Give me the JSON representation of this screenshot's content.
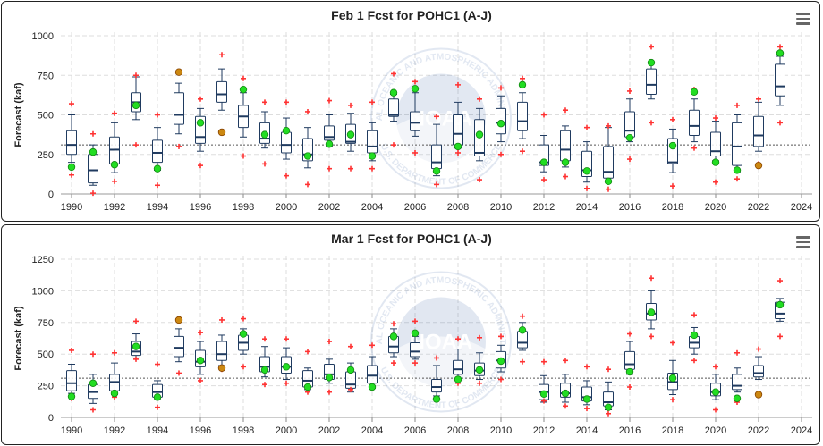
{
  "colors": {
    "box": "#1f3a5f",
    "observed": "#22dd22",
    "observed_stroke": "#118811",
    "observed_partial": "#cc8811",
    "extreme": "#ff3333",
    "normal_line": "#555555",
    "grid": "#dddddd",
    "watermark": "#1f4f9c"
  },
  "watermark": {
    "logo": "NOAA",
    "ring_top": "NATIONAL OCEANIC AND ATMOSPHERIC ADMINISTRATION",
    "ring_bottom": "U.S. DEPARTMENT OF COMMERCE"
  },
  "chart_data": [
    {
      "type": "box",
      "title": "Feb 1 Fcst for POHC1 (A-J)",
      "ylabel": "Forecast (kaf)",
      "ylim": [
        0,
        1000
      ],
      "yticks": [
        0,
        250,
        500,
        750,
        1000
      ],
      "xlim": [
        1989.5,
        2024.5
      ],
      "xticks": [
        1990,
        1992,
        1994,
        1996,
        1998,
        2000,
        2002,
        2004,
        2006,
        2008,
        2010,
        2012,
        2014,
        2016,
        2018,
        2020,
        2022,
        2024
      ],
      "grid": true,
      "normal_line": 310,
      "years": [
        1990,
        1991,
        1992,
        1993,
        1994,
        1995,
        1996,
        1997,
        1998,
        1999,
        2000,
        2001,
        2002,
        2003,
        2004,
        2005,
        2006,
        2007,
        2008,
        2009,
        2010,
        2011,
        2012,
        2013,
        2014,
        2015,
        2016,
        2017,
        2018,
        2019,
        2020,
        2021,
        2022,
        2023
      ],
      "box_min": [
        200,
        55,
        135,
        470,
        150,
        380,
        270,
        530,
        360,
        290,
        220,
        165,
        300,
        270,
        210,
        460,
        365,
        115,
        290,
        210,
        330,
        350,
        140,
        170,
        75,
        80,
        330,
        600,
        135,
        330,
        210,
        135,
        270,
        560
      ],
      "box_q1": [
        250,
        70,
        190,
        520,
        200,
        440,
        320,
        580,
        420,
        320,
        260,
        210,
        340,
        320,
        260,
        490,
        400,
        160,
        310,
        240,
        380,
        400,
        180,
        210,
        110,
        100,
        360,
        630,
        190,
        370,
        240,
        180,
        300,
        620
      ],
      "box_median": [
        310,
        150,
        280,
        580,
        260,
        500,
        360,
        630,
        490,
        350,
        310,
        250,
        360,
        330,
        300,
        500,
        450,
        200,
        380,
        260,
        450,
        460,
        200,
        280,
        150,
        140,
        400,
        690,
        200,
        430,
        270,
        300,
        370,
        680
      ],
      "box_q3": [
        400,
        250,
        360,
        640,
        340,
        640,
        490,
        710,
        560,
        450,
        390,
        350,
        430,
        440,
        400,
        600,
        520,
        310,
        500,
        470,
        540,
        580,
        310,
        400,
        270,
        300,
        520,
        790,
        350,
        530,
        390,
        450,
        490,
        820
      ],
      "box_max": [
        500,
        310,
        450,
        740,
        420,
        700,
        540,
        790,
        640,
        520,
        480,
        420,
        500,
        510,
        450,
        630,
        640,
        440,
        580,
        540,
        620,
        640,
        370,
        430,
        330,
        420,
        600,
        830,
        410,
        600,
        460,
        500,
        580,
        870
      ],
      "extreme_low": [
        120,
        5,
        80,
        310,
        55,
        300,
        180,
        390,
        240,
        190,
        115,
        60,
        160,
        160,
        160,
        310,
        260,
        60,
        260,
        90,
        250,
        270,
        90,
        110,
        35,
        30,
        220,
        450,
        50,
        290,
        75,
        95,
        190,
        450
      ],
      "extreme_high": [
        570,
        380,
        510,
        750,
        500,
        770,
        600,
        880,
        730,
        580,
        580,
        520,
        590,
        560,
        580,
        760,
        710,
        490,
        690,
        600,
        670,
        730,
        500,
        530,
        420,
        430,
        650,
        930,
        470,
        660,
        480,
        560,
        600,
        930
      ],
      "observed": [
        170,
        265,
        185,
        560,
        160,
        770,
        450,
        390,
        660,
        375,
        400,
        240,
        315,
        375,
        240,
        640,
        665,
        145,
        300,
        375,
        445,
        690,
        200,
        200,
        145,
        80,
        355,
        830,
        305,
        645,
        200,
        150,
        180,
        890
      ],
      "observed_partial_years": [
        1995,
        1997,
        2022
      ]
    },
    {
      "type": "box",
      "title": "Mar 1 Fcst for POHC1 (A-J)",
      "ylabel": "Forecast (kaf)",
      "ylim": [
        0,
        1250
      ],
      "yticks": [
        0,
        250,
        500,
        750,
        1000,
        1250
      ],
      "xlim": [
        1989.5,
        2024.5
      ],
      "xticks": [
        1990,
        1992,
        1994,
        1996,
        1998,
        2000,
        2002,
        2004,
        2006,
        2008,
        2010,
        2012,
        2014,
        2016,
        2018,
        2020,
        2022,
        2024
      ],
      "grid": true,
      "normal_line": 310,
      "years": [
        1990,
        1991,
        1992,
        1993,
        1994,
        1995,
        1996,
        1997,
        1998,
        1999,
        2000,
        2001,
        2002,
        2003,
        2004,
        2005,
        2006,
        2007,
        2008,
        2009,
        2010,
        2011,
        2012,
        2013,
        2014,
        2015,
        2016,
        2017,
        2018,
        2019,
        2020,
        2021,
        2022,
        2023
      ],
      "box_min": [
        190,
        110,
        180,
        470,
        140,
        440,
        340,
        410,
        500,
        320,
        300,
        220,
        270,
        200,
        230,
        480,
        460,
        170,
        310,
        300,
        360,
        530,
        120,
        120,
        100,
        60,
        340,
        700,
        180,
        500,
        140,
        200,
        300,
        760
      ],
      "box_q1": [
        210,
        150,
        210,
        490,
        160,
        480,
        400,
        450,
        530,
        360,
        350,
        240,
        300,
        230,
        270,
        510,
        480,
        200,
        340,
        330,
        390,
        550,
        140,
        160,
        130,
        90,
        380,
        770,
        220,
        550,
        170,
        220,
        320,
        780
      ],
      "box_median": [
        270,
        200,
        280,
        520,
        200,
        550,
        440,
        500,
        590,
        400,
        400,
        290,
        340,
        260,
        330,
        560,
        520,
        240,
        380,
        370,
        450,
        590,
        200,
        190,
        160,
        120,
        420,
        820,
        280,
        590,
        200,
        250,
        350,
        820
      ],
      "box_q3": [
        370,
        260,
        340,
        600,
        260,
        640,
        530,
        600,
        650,
        480,
        480,
        370,
        420,
        360,
        410,
        640,
        590,
        300,
        450,
        430,
        520,
        680,
        260,
        270,
        240,
        200,
        520,
        900,
        350,
        640,
        270,
        340,
        410,
        910
      ],
      "box_max": [
        420,
        340,
        430,
        660,
        290,
        700,
        600,
        650,
        700,
        560,
        550,
        390,
        460,
        430,
        480,
        700,
        640,
        410,
        540,
        510,
        570,
        750,
        330,
        340,
        290,
        280,
        600,
        1000,
        450,
        710,
        340,
        390,
        480,
        940
      ],
      "extreme_low": [
        150,
        60,
        160,
        460,
        80,
        350,
        290,
        380,
        400,
        260,
        270,
        200,
        200,
        220,
        230,
        430,
        430,
        140,
        270,
        270,
        300,
        440,
        130,
        90,
        70,
        30,
        240,
        640,
        140,
        450,
        60,
        120,
        190,
        640
      ],
      "extreme_high": [
        530,
        500,
        510,
        760,
        420,
        780,
        670,
        770,
        780,
        620,
        620,
        520,
        600,
        560,
        570,
        740,
        760,
        470,
        620,
        630,
        640,
        800,
        440,
        450,
        400,
        380,
        660,
        1100,
        590,
        810,
        400,
        510,
        540,
        1080
      ],
      "observed": [
        165,
        270,
        190,
        560,
        160,
        770,
        450,
        390,
        660,
        375,
        400,
        240,
        315,
        375,
        240,
        640,
        665,
        145,
        300,
        375,
        445,
        690,
        185,
        190,
        145,
        80,
        360,
        830,
        310,
        650,
        200,
        150,
        180,
        890
      ],
      "observed_partial_years": [
        1995,
        1997,
        2022
      ]
    }
  ]
}
